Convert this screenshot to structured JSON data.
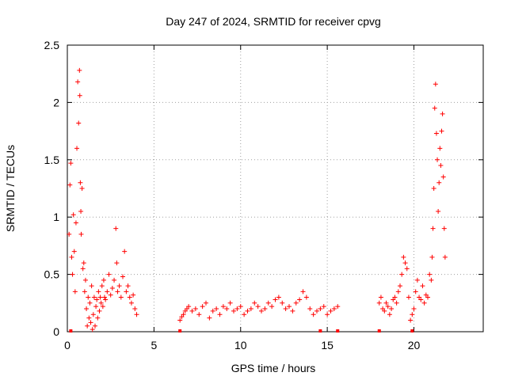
{
  "chart_data": {
    "type": "scatter",
    "title": "Day 247 of 2024, SRMTID for receiver cpvg",
    "xlabel": "GPS time / hours",
    "ylabel": "SRMTID / TECUs",
    "xlim": [
      0,
      24
    ],
    "ylim": [
      0,
      2.5
    ],
    "xticks": [
      0,
      5,
      10,
      15,
      20
    ],
    "yticks": [
      0,
      0.5,
      1,
      1.5,
      2,
      2.5
    ],
    "xtick_labels": [
      "0",
      "5",
      "10",
      "15",
      "20"
    ],
    "ytick_labels": [
      "0",
      "0.5",
      "1",
      "1.5",
      "2",
      "2.5"
    ],
    "grid": true,
    "marker": "plus",
    "color": "#ff0000",
    "series": [
      {
        "name": "SRMTID",
        "x": [
          0.1,
          0.15,
          0.2,
          0.25,
          0.3,
          0.35,
          0.4,
          0.45,
          0.5,
          0.55,
          0.6,
          0.65,
          0.7,
          0.72,
          0.75,
          0.78,
          0.8,
          0.85,
          0.9,
          0.95,
          1.0,
          1.05,
          1.1,
          1.15,
          1.2,
          1.25,
          1.3,
          1.35,
          1.4,
          1.45,
          1.5,
          1.55,
          1.6,
          1.65,
          1.7,
          1.75,
          1.8,
          1.85,
          1.9,
          1.95,
          2.0,
          2.05,
          2.1,
          2.15,
          2.2,
          2.3,
          2.4,
          2.5,
          2.6,
          2.7,
          2.8,
          2.85,
          2.9,
          3.0,
          3.1,
          3.2,
          3.3,
          3.4,
          3.5,
          3.6,
          3.7,
          3.8,
          3.9,
          4.0,
          6.5,
          6.6,
          6.7,
          6.8,
          6.9,
          7.0,
          7.2,
          7.4,
          7.6,
          7.8,
          8.0,
          8.2,
          8.4,
          8.6,
          8.8,
          9.0,
          9.2,
          9.4,
          9.6,
          9.8,
          10.0,
          10.2,
          10.4,
          10.6,
          10.8,
          11.0,
          11.2,
          11.4,
          11.6,
          11.8,
          12.0,
          12.2,
          12.4,
          12.6,
          12.8,
          13.0,
          13.2,
          13.4,
          13.6,
          13.8,
          14.0,
          14.2,
          14.4,
          14.6,
          14.8,
          15.0,
          15.2,
          15.4,
          15.6,
          18.0,
          18.1,
          18.2,
          18.3,
          18.4,
          18.5,
          18.6,
          18.7,
          18.8,
          18.9,
          19.0,
          19.1,
          19.2,
          19.3,
          19.4,
          19.5,
          19.6,
          19.7,
          19.8,
          19.9,
          20.0,
          20.1,
          20.2,
          20.3,
          20.4,
          20.5,
          20.6,
          20.7,
          20.8,
          20.9,
          21.0,
          21.05,
          21.1,
          21.15,
          21.2,
          21.25,
          21.3,
          21.35,
          21.4,
          21.45,
          21.5,
          21.55,
          21.6,
          21.65,
          21.7,
          21.75,
          21.8
        ],
        "values": [
          0.85,
          1.28,
          1.47,
          0.65,
          0.5,
          1.02,
          0.7,
          0.35,
          0.95,
          1.6,
          2.18,
          1.82,
          2.28,
          2.06,
          1.3,
          1.05,
          0.85,
          1.25,
          0.55,
          0.6,
          0.35,
          0.45,
          0.2,
          0.05,
          0.3,
          0.12,
          0.25,
          0.08,
          0.4,
          0.02,
          0.15,
          0.3,
          0.05,
          0.22,
          0.28,
          0.12,
          0.35,
          0.18,
          0.3,
          0.25,
          0.4,
          0.22,
          0.45,
          0.3,
          0.28,
          0.35,
          0.5,
          0.32,
          0.38,
          0.45,
          0.9,
          0.6,
          0.35,
          0.4,
          0.3,
          0.48,
          0.7,
          0.35,
          0.4,
          0.3,
          0.25,
          0.32,
          0.2,
          0.15,
          0.1,
          0.13,
          0.15,
          0.18,
          0.2,
          0.22,
          0.18,
          0.2,
          0.15,
          0.22,
          0.25,
          0.12,
          0.18,
          0.2,
          0.15,
          0.22,
          0.2,
          0.25,
          0.18,
          0.2,
          0.22,
          0.15,
          0.18,
          0.2,
          0.25,
          0.22,
          0.18,
          0.2,
          0.25,
          0.22,
          0.28,
          0.3,
          0.25,
          0.2,
          0.22,
          0.18,
          0.25,
          0.28,
          0.35,
          0.3,
          0.2,
          0.15,
          0.18,
          0.2,
          0.22,
          0.15,
          0.18,
          0.2,
          0.22,
          0.25,
          0.3,
          0.2,
          0.18,
          0.25,
          0.22,
          0.15,
          0.2,
          0.28,
          0.3,
          0.25,
          0.35,
          0.4,
          0.5,
          0.65,
          0.6,
          0.55,
          0.3,
          0.1,
          0.15,
          0.2,
          0.35,
          0.45,
          0.3,
          0.28,
          0.4,
          0.25,
          0.32,
          0.3,
          0.5,
          0.45,
          0.65,
          0.9,
          1.25,
          1.95,
          2.16,
          1.73,
          1.5,
          1.05,
          1.3,
          1.6,
          1.45,
          1.75,
          1.9,
          1.35,
          0.9,
          0.65
        ]
      }
    ],
    "baseline_marks_x": [
      0.2,
      6.5,
      14.6,
      15.6,
      18.0,
      19.9
    ]
  }
}
